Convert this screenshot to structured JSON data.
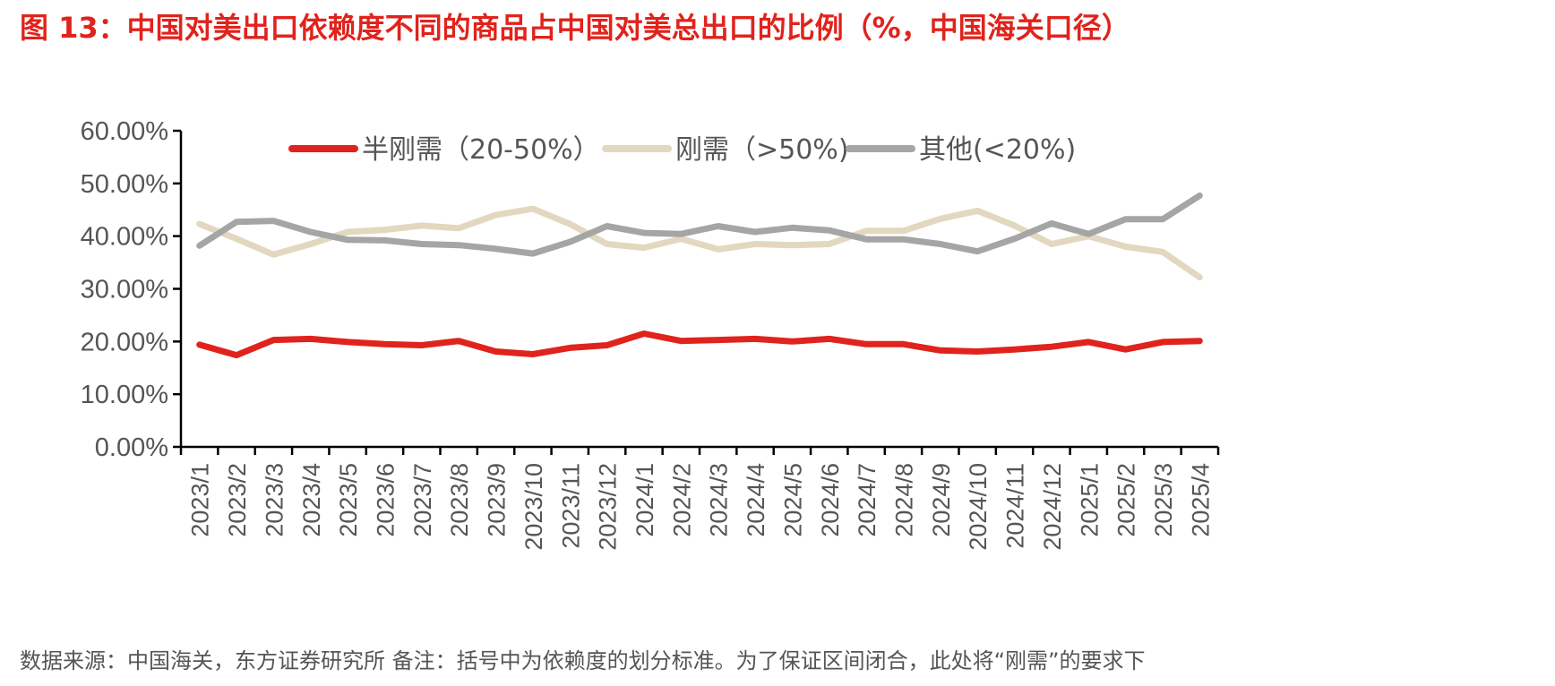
{
  "figure": {
    "title": "图 13：中国对美出口依赖度不同的商品占中国对美总出口的比例（%，中国海关口径）",
    "footnote": "数据来源：中国海关，东方证券研究所  备注：括号中为依赖度的划分标准。为了保证区间闭合，此处将“刚需”的要求下"
  },
  "chart_data": {
    "type": "line",
    "title": "图 13：中国对美出口依赖度不同的商品占中国对美总出口的比例（%，中国海关口径）",
    "xlabel": "",
    "ylabel": "",
    "ylim": [
      0,
      60
    ],
    "y_ticks": [
      "0.00%",
      "10.00%",
      "20.00%",
      "30.00%",
      "40.00%",
      "50.00%",
      "60.00%"
    ],
    "y_tick_values": [
      0,
      10,
      20,
      30,
      40,
      50,
      60
    ],
    "grid": false,
    "legend_position": "top",
    "categories": [
      "2023/1",
      "2023/2",
      "2023/3",
      "2023/4",
      "2023/5",
      "2023/6",
      "2023/7",
      "2023/8",
      "2023/9",
      "2023/10",
      "2023/11",
      "2023/12",
      "2024/1",
      "2024/2",
      "2024/3",
      "2024/4",
      "2024/5",
      "2024/6",
      "2024/7",
      "2024/8",
      "2024/9",
      "2024/10",
      "2024/11",
      "2024/12",
      "2025/1",
      "2025/2",
      "2025/3",
      "2025/4"
    ],
    "series": [
      {
        "name": "半刚需（20-50%）",
        "color": "#e0231c",
        "values": [
          19.4,
          17.4,
          20.3,
          20.5,
          19.9,
          19.5,
          19.3,
          20.1,
          18.1,
          17.6,
          18.8,
          19.3,
          21.5,
          20.1,
          20.3,
          20.5,
          20.0,
          20.5,
          19.5,
          19.5,
          18.3,
          18.1,
          18.5,
          19.0,
          19.9,
          18.5,
          19.9,
          20.1
        ]
      },
      {
        "name": "刚需（>50%)",
        "color": "#e2d8c0",
        "values": [
          42.3,
          39.5,
          36.5,
          38.5,
          40.8,
          41.2,
          42.0,
          41.5,
          44.0,
          45.2,
          42.3,
          38.5,
          37.8,
          39.5,
          37.5,
          38.5,
          38.3,
          38.5,
          41.0,
          41.0,
          43.3,
          44.8,
          42.0,
          38.5,
          40.0,
          38.0,
          37.0,
          32.2
        ]
      },
      {
        "name": "其他(<20%)",
        "color": "#a5a5a5",
        "values": [
          38.2,
          42.7,
          42.9,
          40.8,
          39.3,
          39.2,
          38.5,
          38.3,
          37.6,
          36.7,
          38.9,
          41.9,
          40.6,
          40.4,
          41.9,
          40.8,
          41.6,
          41.1,
          39.4,
          39.4,
          38.5,
          37.1,
          39.5,
          42.4,
          40.4,
          43.2,
          43.2,
          47.7
        ]
      }
    ]
  }
}
